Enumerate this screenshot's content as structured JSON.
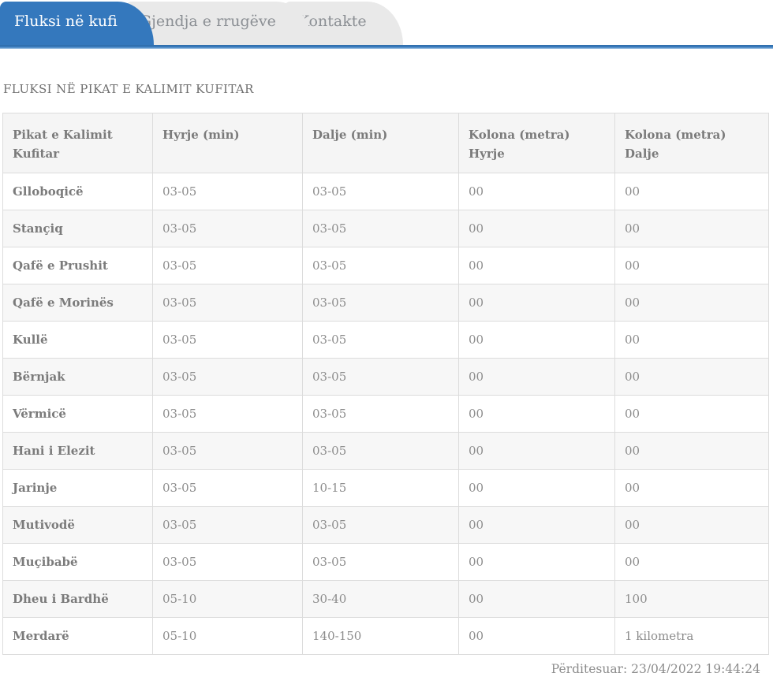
{
  "tabs": [
    {
      "label": "Fluksi në kufi",
      "active": true
    },
    {
      "label": "Gjendja e rrugëve",
      "active": false
    },
    {
      "label": "Kontakte",
      "active": false
    }
  ],
  "page": {
    "title": "FLUKSI NË PIKAT E KALIMIT KUFITAR"
  },
  "table": {
    "columns": [
      "Pikat e Kalimit\nKufitar",
      "Hyrje (min)",
      "Dalje (min)",
      "Kolona (metra)\nHyrje",
      "Kolona (metra)\nDalje"
    ],
    "rows": [
      [
        "Glloboqicë",
        "03-05",
        "03-05",
        "00",
        "00"
      ],
      [
        "Stançiq",
        "03-05",
        "03-05",
        "00",
        "00"
      ],
      [
        "Qafë e Prushit",
        "03-05",
        "03-05",
        "00",
        "00"
      ],
      [
        "Qafë e Morinës",
        "03-05",
        "03-05",
        "00",
        "00"
      ],
      [
        "Kullë",
        "03-05",
        "03-05",
        "00",
        "00"
      ],
      [
        "Bërnjak",
        "03-05",
        "03-05",
        "00",
        "00"
      ],
      [
        "Vërmicë",
        "03-05",
        "03-05",
        "00",
        "00"
      ],
      [
        "Hani i Elezit",
        "03-05",
        "03-05",
        "00",
        "00"
      ],
      [
        "Jarinje",
        "03-05",
        "10-15",
        "00",
        "00"
      ],
      [
        "Mutivodë",
        "03-05",
        "03-05",
        "00",
        "00"
      ],
      [
        "Muçibabë",
        "03-05",
        "03-05",
        "00",
        "00"
      ],
      [
        "Dheu i Bardhë",
        "05-10",
        "30-40",
        "00",
        "100"
      ],
      [
        "Merdarë",
        "05-10",
        "140-150",
        "00",
        "1 kilometra"
      ]
    ]
  },
  "footer": {
    "updated_label": "Përditesuar: 23/04/2022 19:44:24"
  },
  "colors": {
    "accent_blue": "#3478bd",
    "inactive_tab_bg": "#e9e9e9",
    "inactive_tab_text": "#8b8f94",
    "active_tab_text": "#ffffff",
    "table_border": "#dcdcdc",
    "header_bg": "#f5f5f5",
    "stripe_bg": "#f7f7f7",
    "text_gray": "#8d8d8d",
    "bold_text_gray": "#7b7b7b"
  }
}
